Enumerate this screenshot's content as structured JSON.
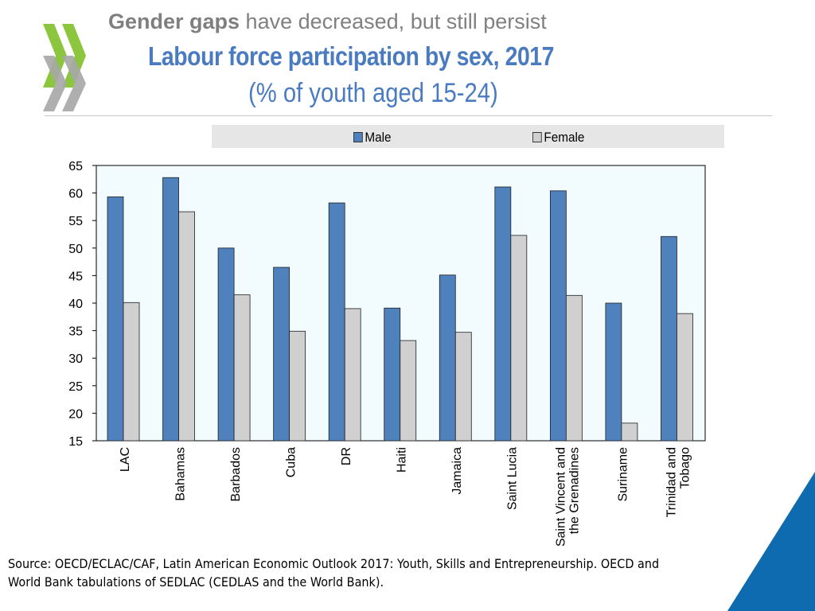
{
  "header": {
    "title_bold": "Gender gaps",
    "title_rest": " have decreased, but still persist",
    "chart_title": "Labour force participation by sex, 2017",
    "chart_subtitle": "(% of youth aged 15-24)"
  },
  "legend": {
    "male_label": "Male",
    "female_label": "Female"
  },
  "colors": {
    "male": "#4f81bd",
    "female": "#d0d0d0",
    "title_blue": "#4a7bc1",
    "plot_bg": "#f2fbfe",
    "logo_green": "#8cc63f",
    "logo_gray": "#a6a6a6",
    "corner_blue": "#0f6bb0"
  },
  "source": "Source: OECD/ECLAC/CAF, Latin American Economic Outlook 2017: Youth, Skills and Entrepreneurship. OECD and World Bank tabulations of SEDLAC (CEDLAS and the World Bank).",
  "chart_data": {
    "type": "bar",
    "categories": [
      [
        "LAC"
      ],
      [
        "Bahamas"
      ],
      [
        "Barbados"
      ],
      [
        "Cuba"
      ],
      [
        "DR"
      ],
      [
        "Haiti"
      ],
      [
        "Jamaica"
      ],
      [
        "Saint Lucia"
      ],
      [
        "Saint Vincent and",
        "the Grenadines"
      ],
      [
        "Suriname"
      ],
      [
        "Trinidad and",
        "Tobago"
      ]
    ],
    "series": [
      {
        "name": "Male",
        "values": [
          59.3,
          62.8,
          50.0,
          46.5,
          58.2,
          39.1,
          45.1,
          61.1,
          60.4,
          40.0,
          52.1
        ]
      },
      {
        "name": "Female",
        "values": [
          40.1,
          56.6,
          41.5,
          34.9,
          39.0,
          33.2,
          34.7,
          52.3,
          41.4,
          18.2,
          38.1
        ]
      }
    ],
    "ylim": [
      15,
      65
    ],
    "yticks": [
      "15",
      "20",
      "25",
      "30",
      "35",
      "40",
      "45",
      "50",
      "55",
      "60",
      "65"
    ],
    "legend_position": "top",
    "grid": false
  }
}
